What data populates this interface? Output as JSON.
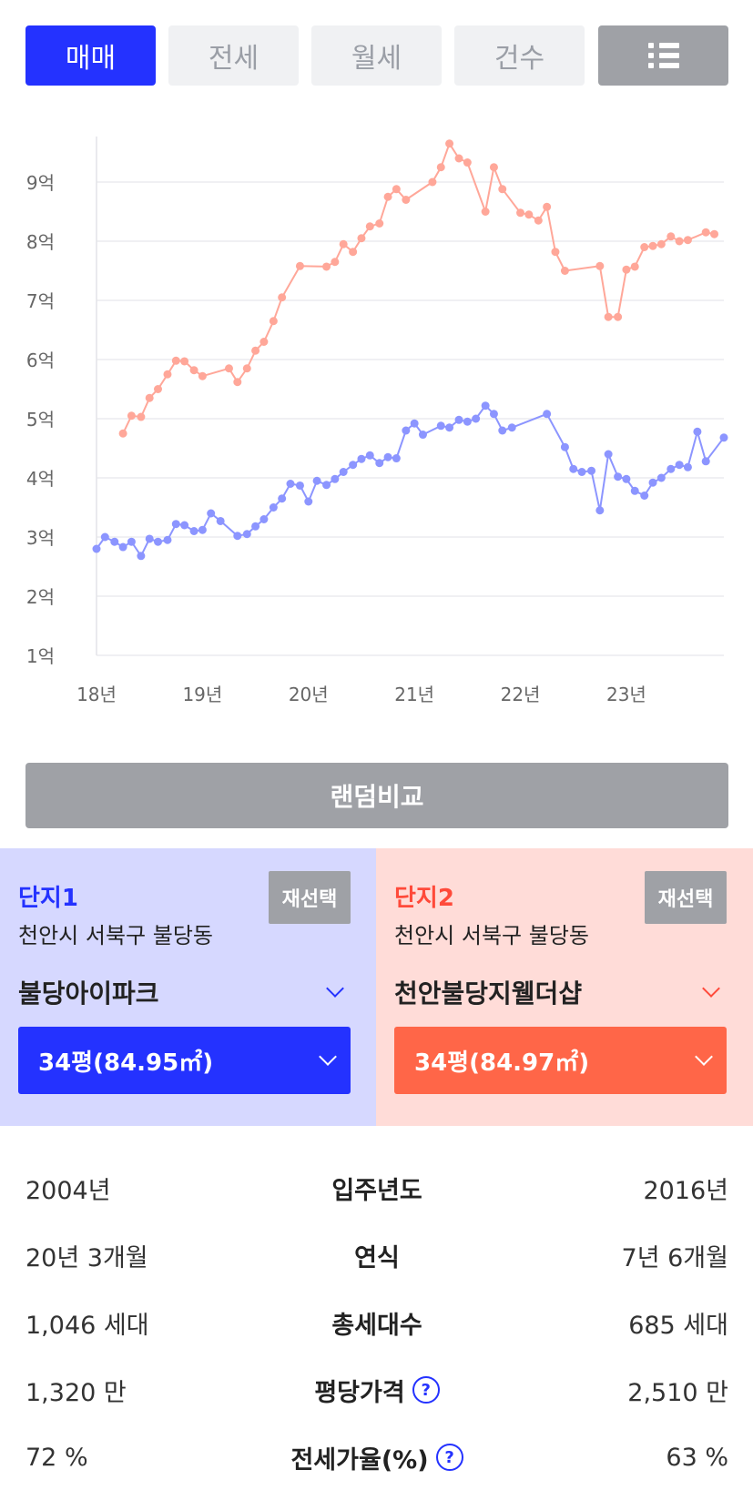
{
  "tabs": [
    {
      "label": "매매",
      "active": true
    },
    {
      "label": "전세",
      "active": false
    },
    {
      "label": "월세",
      "active": false
    },
    {
      "label": "건수",
      "active": false
    }
  ],
  "menu_icon": "list-view-icon",
  "chart_data": {
    "type": "line",
    "title": "",
    "xlabel": "",
    "ylabel": "",
    "x_ticks": [
      "18년",
      "19년",
      "20년",
      "21년",
      "22년",
      "23년"
    ],
    "y_ticks": [
      "1억",
      "2억",
      "3억",
      "4억",
      "5억",
      "6억",
      "7억",
      "8억",
      "9억"
    ],
    "ylim": [
      1,
      9.8
    ],
    "xlim": [
      2018.0,
      2023.92
    ],
    "grid": true,
    "colors": {
      "series1": "#8c95ff",
      "series2": "#ffa799"
    },
    "series": [
      {
        "name": "",
        "color": "#8c95ff",
        "points": [
          [
            2018.0,
            2.8
          ],
          [
            2018.08,
            3.0
          ],
          [
            2018.17,
            2.92
          ],
          [
            2018.25,
            2.83
          ],
          [
            2018.33,
            2.92
          ],
          [
            2018.42,
            2.68
          ],
          [
            2018.5,
            2.97
          ],
          [
            2018.58,
            2.92
          ],
          [
            2018.67,
            2.95
          ],
          [
            2018.75,
            3.22
          ],
          [
            2018.83,
            3.2
          ],
          [
            2018.92,
            3.1
          ],
          [
            2019.0,
            3.12
          ],
          [
            2019.08,
            3.4
          ],
          [
            2019.17,
            3.27
          ],
          [
            2019.33,
            3.02
          ],
          [
            2019.42,
            3.05
          ],
          [
            2019.5,
            3.18
          ],
          [
            2019.58,
            3.3
          ],
          [
            2019.67,
            3.5
          ],
          [
            2019.75,
            3.65
          ],
          [
            2019.83,
            3.9
          ],
          [
            2019.92,
            3.87
          ],
          [
            2020.0,
            3.6
          ],
          [
            2020.08,
            3.95
          ],
          [
            2020.17,
            3.88
          ],
          [
            2020.25,
            3.98
          ],
          [
            2020.33,
            4.1
          ],
          [
            2020.42,
            4.22
          ],
          [
            2020.5,
            4.32
          ],
          [
            2020.58,
            4.38
          ],
          [
            2020.67,
            4.25
          ],
          [
            2020.75,
            4.35
          ],
          [
            2020.83,
            4.33
          ],
          [
            2020.92,
            4.8
          ],
          [
            2021.0,
            4.92
          ],
          [
            2021.08,
            4.73
          ],
          [
            2021.25,
            4.88
          ],
          [
            2021.33,
            4.85
          ],
          [
            2021.42,
            4.98
          ],
          [
            2021.5,
            4.95
          ],
          [
            2021.58,
            5.0
          ],
          [
            2021.67,
            5.22
          ],
          [
            2021.75,
            5.08
          ],
          [
            2021.83,
            4.8
          ],
          [
            2021.92,
            4.85
          ],
          [
            2022.25,
            5.08
          ],
          [
            2022.42,
            4.52
          ],
          [
            2022.5,
            4.15
          ],
          [
            2022.58,
            4.1
          ],
          [
            2022.67,
            4.12
          ],
          [
            2022.75,
            3.45
          ],
          [
            2022.83,
            4.4
          ],
          [
            2022.92,
            4.02
          ],
          [
            2023.0,
            3.98
          ],
          [
            2023.08,
            3.78
          ],
          [
            2023.17,
            3.7
          ],
          [
            2023.25,
            3.92
          ],
          [
            2023.33,
            4.0
          ],
          [
            2023.42,
            4.15
          ],
          [
            2023.5,
            4.22
          ],
          [
            2023.58,
            4.18
          ],
          [
            2023.67,
            4.78
          ],
          [
            2023.75,
            4.28
          ],
          [
            2023.92,
            4.68
          ]
        ]
      },
      {
        "name": "",
        "color": "#ffa799",
        "points": [
          [
            2018.25,
            4.75
          ],
          [
            2018.33,
            5.05
          ],
          [
            2018.42,
            5.03
          ],
          [
            2018.5,
            5.35
          ],
          [
            2018.58,
            5.5
          ],
          [
            2018.67,
            5.75
          ],
          [
            2018.75,
            5.98
          ],
          [
            2018.83,
            5.97
          ],
          [
            2018.92,
            5.82
          ],
          [
            2019.0,
            5.72
          ],
          [
            2019.25,
            5.85
          ],
          [
            2019.33,
            5.62
          ],
          [
            2019.42,
            5.85
          ],
          [
            2019.5,
            6.15
          ],
          [
            2019.58,
            6.3
          ],
          [
            2019.67,
            6.65
          ],
          [
            2019.75,
            7.05
          ],
          [
            2019.92,
            7.58
          ],
          [
            2020.17,
            7.57
          ],
          [
            2020.25,
            7.65
          ],
          [
            2020.33,
            7.95
          ],
          [
            2020.42,
            7.82
          ],
          [
            2020.5,
            8.05
          ],
          [
            2020.58,
            8.25
          ],
          [
            2020.67,
            8.3
          ],
          [
            2020.75,
            8.75
          ],
          [
            2020.83,
            8.88
          ],
          [
            2020.92,
            8.7
          ],
          [
            2021.17,
            9.0
          ],
          [
            2021.25,
            9.25
          ],
          [
            2021.33,
            9.65
          ],
          [
            2021.42,
            9.4
          ],
          [
            2021.5,
            9.33
          ],
          [
            2021.67,
            8.5
          ],
          [
            2021.75,
            9.25
          ],
          [
            2021.83,
            8.88
          ],
          [
            2022.0,
            8.48
          ],
          [
            2022.08,
            8.45
          ],
          [
            2022.17,
            8.35
          ],
          [
            2022.25,
            8.58
          ],
          [
            2022.33,
            7.82
          ],
          [
            2022.42,
            7.5
          ],
          [
            2022.75,
            7.58
          ],
          [
            2022.83,
            6.72
          ],
          [
            2022.92,
            6.72
          ],
          [
            2023.0,
            7.52
          ],
          [
            2023.08,
            7.57
          ],
          [
            2023.17,
            7.9
          ],
          [
            2023.25,
            7.92
          ],
          [
            2023.33,
            7.95
          ],
          [
            2023.42,
            8.08
          ],
          [
            2023.5,
            8.0
          ],
          [
            2023.58,
            8.02
          ],
          [
            2023.75,
            8.15
          ],
          [
            2023.83,
            8.12
          ]
        ]
      }
    ]
  },
  "random_button": "랜덤비교",
  "complex1": {
    "label": "단지1",
    "region": "천안시 서북구 불당동",
    "reselect": "재선택",
    "apt_name": "불당아이파크",
    "size": "34평(84.95㎡)",
    "color": "#2432ff"
  },
  "complex2": {
    "label": "단지2",
    "region": "천안시 서북구 불당동",
    "reselect": "재선택",
    "apt_name": "천안불당지웰더샵",
    "size": "34평(84.97㎡)",
    "color": "#ff6648"
  },
  "info": [
    {
      "left": "2004년",
      "label": "입주년도",
      "right": "2016년",
      "help": false
    },
    {
      "left": "20년 3개월",
      "label": "연식",
      "right": "7년 6개월",
      "help": false
    },
    {
      "left": "1,046 세대",
      "label": "총세대수",
      "right": "685 세대",
      "help": false
    },
    {
      "left": "1,320 만",
      "label": "평당가격",
      "right": "2,510 만",
      "help": true
    },
    {
      "left": "72 %",
      "label": "전세가율(%)",
      "right": "63 %",
      "help": true
    }
  ],
  "help_icon": "question-circle-icon"
}
